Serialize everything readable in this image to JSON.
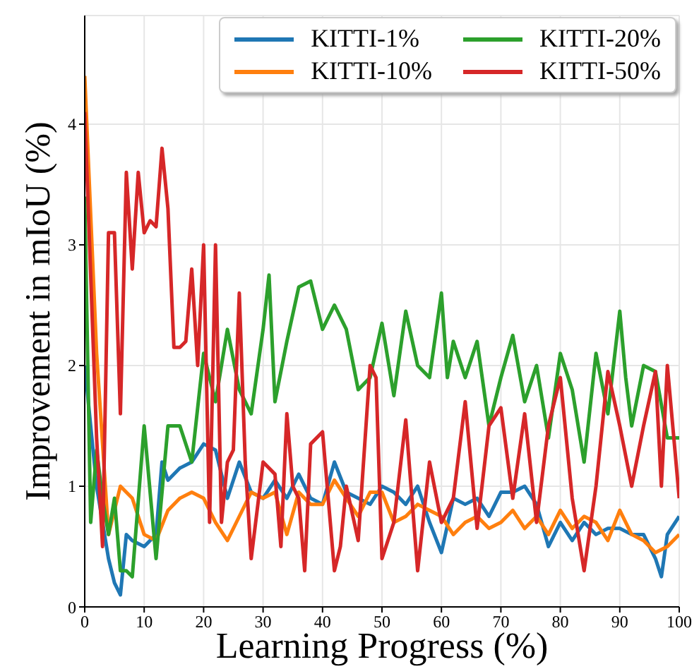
{
  "chart_data": {
    "type": "line",
    "xlabel": "Learning Progress (%)",
    "ylabel": "Improvement in mIoU (%)",
    "xlim": [
      0,
      100
    ],
    "xticks": [
      0,
      10,
      20,
      30,
      40,
      50,
      60,
      70,
      80,
      90,
      100
    ],
    "ylim": [
      0,
      4.9
    ],
    "yticks": [
      0,
      1,
      2,
      3,
      4
    ],
    "grid": true,
    "legend": "top right",
    "line_style": "solid",
    "marker": "none",
    "series": [
      {
        "name": "KITTI-1%",
        "color": "#1f77b4",
        "x": [
          0,
          2,
          4,
          5,
          6,
          7,
          8,
          10,
          12,
          13,
          14,
          16,
          18,
          20,
          22,
          24,
          26,
          28,
          30,
          32,
          34,
          36,
          38,
          40,
          42,
          44,
          46,
          48,
          50,
          52,
          54,
          56,
          58,
          60,
          62,
          64,
          66,
          68,
          70,
          72,
          74,
          76,
          78,
          80,
          82,
          84,
          86,
          88,
          90,
          92,
          94,
          96,
          97,
          98,
          100
        ],
        "values": [
          2.0,
          1.0,
          0.4,
          0.2,
          0.1,
          0.6,
          0.55,
          0.5,
          0.6,
          1.2,
          1.05,
          1.15,
          1.2,
          1.35,
          1.3,
          0.9,
          1.2,
          0.95,
          0.9,
          1.05,
          0.9,
          1.1,
          0.9,
          0.85,
          1.2,
          0.95,
          0.9,
          0.85,
          1.0,
          0.95,
          0.85,
          1.0,
          0.7,
          0.45,
          0.9,
          0.85,
          0.9,
          0.75,
          0.95,
          0.95,
          1.0,
          0.85,
          0.5,
          0.7,
          0.55,
          0.7,
          0.6,
          0.65,
          0.65,
          0.6,
          0.6,
          0.4,
          0.25,
          0.6,
          0.75
        ]
      },
      {
        "name": "KITTI-10%",
        "color": "#ff7f0e",
        "x": [
          0,
          2,
          4,
          6,
          8,
          10,
          12,
          14,
          16,
          18,
          20,
          22,
          24,
          26,
          28,
          30,
          32,
          34,
          36,
          38,
          40,
          42,
          44,
          46,
          48,
          50,
          52,
          54,
          56,
          58,
          60,
          62,
          64,
          66,
          68,
          70,
          72,
          74,
          76,
          78,
          80,
          82,
          84,
          86,
          88,
          90,
          92,
          94,
          96,
          98,
          100
        ],
        "values": [
          4.4,
          2.1,
          0.6,
          1.0,
          0.9,
          0.6,
          0.55,
          0.8,
          0.9,
          0.95,
          0.9,
          0.7,
          0.55,
          0.75,
          0.95,
          0.9,
          0.95,
          0.6,
          0.95,
          0.85,
          0.85,
          1.05,
          0.9,
          0.75,
          0.95,
          0.95,
          0.7,
          0.75,
          0.85,
          0.8,
          0.75,
          0.6,
          0.7,
          0.75,
          0.65,
          0.7,
          0.8,
          0.65,
          0.75,
          0.6,
          0.8,
          0.65,
          0.75,
          0.7,
          0.55,
          0.8,
          0.6,
          0.55,
          0.45,
          0.5,
          0.6
        ]
      },
      {
        "name": "KITTI-20%",
        "color": "#2ca02c",
        "x": [
          0,
          1,
          2,
          3,
          4,
          5,
          6,
          7,
          8,
          10,
          12,
          14,
          16,
          18,
          20,
          22,
          24,
          26,
          28,
          30,
          31,
          32,
          34,
          36,
          38,
          40,
          42,
          44,
          46,
          48,
          50,
          52,
          54,
          56,
          58,
          60,
          61,
          62,
          64,
          66,
          68,
          70,
          72,
          74,
          76,
          78,
          80,
          82,
          84,
          86,
          88,
          90,
          91,
          92,
          94,
          96,
          98,
          100
        ],
        "values": [
          3.4,
          0.7,
          1.3,
          0.9,
          0.6,
          0.9,
          0.3,
          0.3,
          0.25,
          1.5,
          0.4,
          1.5,
          1.5,
          1.2,
          2.1,
          1.7,
          2.3,
          1.8,
          1.6,
          2.3,
          2.75,
          1.7,
          2.2,
          2.65,
          2.7,
          2.3,
          2.5,
          2.3,
          1.8,
          1.9,
          2.35,
          1.75,
          2.45,
          2.0,
          1.9,
          2.6,
          1.9,
          2.2,
          1.9,
          2.2,
          1.5,
          1.9,
          2.25,
          1.7,
          2.0,
          1.4,
          2.1,
          1.8,
          1.2,
          2.1,
          1.6,
          2.45,
          1.9,
          1.5,
          2.0,
          1.95,
          1.4,
          1.4
        ]
      },
      {
        "name": "KITTI-50%",
        "color": "#d62728",
        "x": [
          0,
          2,
          3,
          4,
          5,
          6,
          7,
          8,
          9,
          10,
          11,
          12,
          13,
          14,
          15,
          16,
          17,
          18,
          19,
          20,
          21,
          22,
          23,
          24,
          25,
          26,
          27,
          28,
          30,
          32,
          33,
          34,
          35,
          36,
          37,
          38,
          40,
          42,
          43,
          44,
          46,
          48,
          49,
          50,
          52,
          54,
          56,
          58,
          60,
          62,
          64,
          66,
          68,
          70,
          72,
          74,
          76,
          78,
          80,
          82,
          84,
          86,
          88,
          90,
          92,
          94,
          96,
          97,
          98,
          100
        ],
        "values": [
          4.1,
          1.4,
          0.5,
          3.1,
          3.1,
          1.6,
          3.6,
          2.8,
          3.6,
          3.1,
          3.2,
          3.15,
          3.8,
          3.3,
          2.15,
          2.15,
          2.2,
          2.8,
          2.0,
          3.0,
          0.7,
          3.0,
          0.7,
          1.2,
          1.3,
          2.6,
          1.2,
          0.4,
          1.2,
          1.1,
          0.5,
          1.6,
          1.0,
          0.9,
          0.3,
          1.35,
          1.45,
          0.3,
          0.5,
          1.0,
          0.55,
          2.0,
          1.9,
          0.4,
          0.7,
          1.55,
          0.3,
          1.2,
          0.7,
          0.9,
          1.7,
          0.65,
          1.5,
          1.65,
          0.9,
          1.6,
          0.7,
          1.5,
          1.9,
          0.9,
          0.3,
          1.0,
          1.95,
          1.5,
          1.0,
          1.5,
          1.95,
          1.0,
          2.0,
          0.9
        ]
      }
    ]
  }
}
